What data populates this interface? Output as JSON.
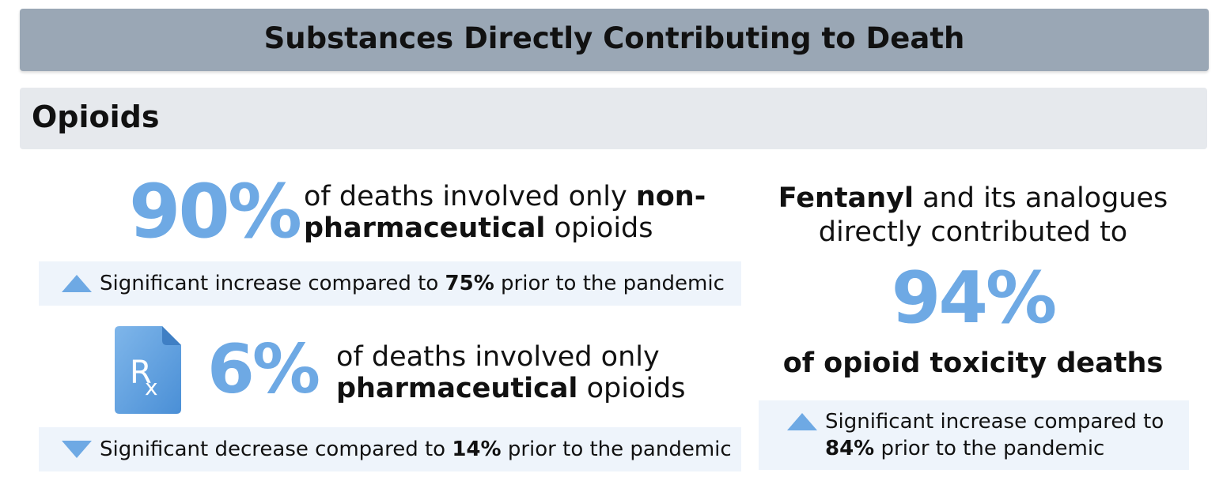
{
  "header": {
    "title": "Substances Directly Contributing to Death"
  },
  "section": {
    "title": "Opioids"
  },
  "stat_non_pharma": {
    "percent": "90%",
    "desc_prefix": "of deaths involved only ",
    "desc_bold": "non-pharmaceutical",
    "desc_suffix": " opioids",
    "note_prefix": "Significant increase compared to ",
    "note_bold": "75%",
    "note_suffix": " prior to the pandemic",
    "trend_icon": "triangle-up-icon"
  },
  "stat_pharma": {
    "percent": "6%",
    "desc_line1": "of deaths involved only",
    "desc_bold": "pharmaceutical",
    "desc_suffix": " opioids",
    "note_prefix": "Significant decrease compared to ",
    "note_bold": "14%",
    "note_suffix": " prior to the pandemic",
    "trend_icon": "triangle-down-icon",
    "icon": "prescription-rx-icon",
    "icon_text": "Rx"
  },
  "stat_fentanyl": {
    "intro_bold": "Fentanyl",
    "intro_rest1": " and its analogues",
    "intro_line2": "directly contributed to",
    "percent": "94%",
    "label": "of opioid toxicity deaths",
    "note_line1": "Significant increase compared to",
    "note_bold": "84%",
    "note_suffix": " prior to the pandemic",
    "trend_icon": "triangle-up-icon"
  },
  "colors": {
    "accent": "#6ea9e4",
    "title_bar": "#9aa7b5",
    "section_bar": "#e6e9ed",
    "note_bg": "#eef4fb"
  }
}
